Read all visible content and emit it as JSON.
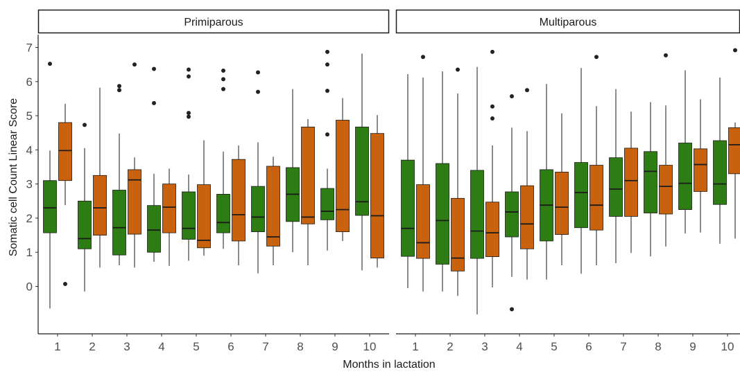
{
  "chart_data": {
    "type": "boxplot",
    "xlabel": "Months in lactation",
    "ylabel": "Somatic cell Count Linear Score",
    "ylim": [
      -1.3,
      7.3
    ],
    "yticks": [
      0,
      1,
      2,
      3,
      4,
      5,
      6,
      7
    ],
    "categories": [
      "1",
      "2",
      "3",
      "4",
      "5",
      "6",
      "7",
      "8",
      "9",
      "10"
    ],
    "colors": {
      "green": "#2e7d14",
      "orange": "#c8620e"
    },
    "grid": false,
    "panels": [
      {
        "name": "Primiparous",
        "series": [
          {
            "color": "#2e7d14",
            "boxes": [
              {
                "x": "1",
                "lower": -0.65,
                "q1": 1.57,
                "median": 2.3,
                "q3": 3.1,
                "upper": 3.98,
                "outliers": [
                  6.52
                ]
              },
              {
                "x": "2",
                "lower": -0.15,
                "q1": 1.1,
                "median": 1.4,
                "q3": 2.5,
                "upper": 4.05,
                "outliers": [
                  4.73
                ]
              },
              {
                "x": "3",
                "lower": 0.62,
                "q1": 0.92,
                "median": 1.72,
                "q3": 2.82,
                "upper": 4.48,
                "outliers": [
                  5.75,
                  5.87
                ]
              },
              {
                "x": "4",
                "lower": 0.72,
                "q1": 1.0,
                "median": 1.65,
                "q3": 2.37,
                "upper": 3.3,
                "outliers": [
                  5.37,
                  6.37
                ]
              },
              {
                "x": "5",
                "lower": 0.75,
                "q1": 1.38,
                "median": 1.7,
                "q3": 2.77,
                "upper": 3.28,
                "outliers": [
                  4.97,
                  5.08,
                  6.15,
                  6.35
                ]
              },
              {
                "x": "6",
                "lower": 1.1,
                "q1": 1.57,
                "median": 1.87,
                "q3": 2.7,
                "upper": 3.95,
                "outliers": [
                  5.78,
                  6.07,
                  6.32
                ]
              },
              {
                "x": "7",
                "lower": 0.38,
                "q1": 1.6,
                "median": 2.03,
                "q3": 2.93,
                "upper": 4.22,
                "outliers": [
                  5.7,
                  6.27
                ]
              },
              {
                "x": "8",
                "lower": 1.0,
                "q1": 1.9,
                "median": 2.7,
                "q3": 3.48,
                "upper": 5.78,
                "outliers": []
              },
              {
                "x": "9",
                "lower": 1.05,
                "q1": 1.95,
                "median": 2.2,
                "q3": 2.87,
                "upper": 3.45,
                "outliers": [
                  4.45,
                  5.73,
                  6.5,
                  6.87
                ]
              },
              {
                "x": "10",
                "lower": 0.47,
                "q1": 2.08,
                "median": 2.48,
                "q3": 4.67,
                "upper": 6.82,
                "outliers": []
              }
            ]
          },
          {
            "color": "#c8620e",
            "boxes": [
              {
                "x": "1",
                "lower": 2.38,
                "q1": 3.1,
                "median": 3.98,
                "q3": 4.8,
                "upper": 5.35,
                "outliers": [
                  0.07
                ]
              },
              {
                "x": "2",
                "lower": 0.55,
                "q1": 1.5,
                "median": 2.3,
                "q3": 3.25,
                "upper": 5.82,
                "outliers": []
              },
              {
                "x": "3",
                "lower": 0.55,
                "q1": 1.53,
                "median": 3.12,
                "q3": 3.42,
                "upper": 3.78,
                "outliers": [
                  6.5
                ]
              },
              {
                "x": "4",
                "lower": 0.6,
                "q1": 1.57,
                "median": 2.32,
                "q3": 3.0,
                "upper": 3.45,
                "outliers": []
              },
              {
                "x": "5",
                "lower": 0.9,
                "q1": 1.13,
                "median": 1.35,
                "q3": 2.98,
                "upper": 4.28,
                "outliers": []
              },
              {
                "x": "6",
                "lower": 0.62,
                "q1": 1.33,
                "median": 2.1,
                "q3": 3.72,
                "upper": 4.13,
                "outliers": []
              },
              {
                "x": "7",
                "lower": 0.62,
                "q1": 1.18,
                "median": 1.45,
                "q3": 3.52,
                "upper": 3.8,
                "outliers": []
              },
              {
                "x": "8",
                "lower": 0.62,
                "q1": 1.83,
                "median": 2.03,
                "q3": 4.67,
                "upper": 4.9,
                "outliers": []
              },
              {
                "x": "9",
                "lower": 1.33,
                "q1": 1.6,
                "median": 2.25,
                "q3": 4.87,
                "upper": 5.52,
                "outliers": []
              },
              {
                "x": "10",
                "lower": 0.55,
                "q1": 0.83,
                "median": 2.07,
                "q3": 4.48,
                "upper": 5.02,
                "outliers": []
              }
            ]
          }
        ]
      },
      {
        "name": "Multiparous",
        "series": [
          {
            "color": "#2e7d14",
            "boxes": [
              {
                "x": "1",
                "lower": -0.05,
                "q1": 0.88,
                "median": 1.7,
                "q3": 3.7,
                "upper": 6.22,
                "outliers": []
              },
              {
                "x": "2",
                "lower": -0.15,
                "q1": 0.65,
                "median": 1.93,
                "q3": 3.6,
                "upper": 6.3,
                "outliers": []
              },
              {
                "x": "3",
                "lower": -0.82,
                "q1": 0.82,
                "median": 1.62,
                "q3": 3.4,
                "upper": 6.43,
                "outliers": []
              },
              {
                "x": "4",
                "lower": 0.28,
                "q1": 1.45,
                "median": 2.18,
                "q3": 2.77,
                "upper": 4.65,
                "outliers": [
                  -0.67,
                  5.57
                ]
              },
              {
                "x": "5",
                "lower": 0.2,
                "q1": 1.33,
                "median": 2.38,
                "q3": 3.42,
                "upper": 5.93,
                "outliers": []
              },
              {
                "x": "6",
                "lower": 0.37,
                "q1": 1.72,
                "median": 2.75,
                "q3": 3.63,
                "upper": 6.4,
                "outliers": []
              },
              {
                "x": "7",
                "lower": 0.68,
                "q1": 2.05,
                "median": 2.85,
                "q3": 3.77,
                "upper": 5.78,
                "outliers": []
              },
              {
                "x": "8",
                "lower": 0.88,
                "q1": 2.15,
                "median": 3.37,
                "q3": 3.95,
                "upper": 5.4,
                "outliers": []
              },
              {
                "x": "9",
                "lower": 1.55,
                "q1": 2.25,
                "median": 3.02,
                "q3": 4.2,
                "upper": 6.33,
                "outliers": []
              },
              {
                "x": "10",
                "lower": 1.25,
                "q1": 2.4,
                "median": 3.0,
                "q3": 4.27,
                "upper": 6.12,
                "outliers": []
              }
            ]
          },
          {
            "color": "#c8620e",
            "boxes": [
              {
                "x": "1",
                "lower": -0.15,
                "q1": 0.82,
                "median": 1.28,
                "q3": 2.98,
                "upper": 6.12,
                "outliers": [
                  6.72
                ]
              },
              {
                "x": "2",
                "lower": -0.28,
                "q1": 0.45,
                "median": 0.83,
                "q3": 2.58,
                "upper": 5.65,
                "outliers": [
                  6.35
                ]
              },
              {
                "x": "3",
                "lower": -0.03,
                "q1": 0.87,
                "median": 1.57,
                "q3": 2.47,
                "upper": 4.13,
                "outliers": [
                  4.92,
                  5.27,
                  6.87
                ]
              },
              {
                "x": "4",
                "lower": 0.2,
                "q1": 1.1,
                "median": 1.83,
                "q3": 2.95,
                "upper": 4.55,
                "outliers": [
                  5.75
                ]
              },
              {
                "x": "5",
                "lower": 0.62,
                "q1": 1.52,
                "median": 2.32,
                "q3": 3.35,
                "upper": 5.07,
                "outliers": []
              },
              {
                "x": "6",
                "lower": 0.62,
                "q1": 1.65,
                "median": 2.38,
                "q3": 3.55,
                "upper": 5.28,
                "outliers": [
                  6.72
                ]
              },
              {
                "x": "7",
                "lower": 0.98,
                "q1": 2.05,
                "median": 3.1,
                "q3": 4.05,
                "upper": 5.12,
                "outliers": []
              },
              {
                "x": "8",
                "lower": 1.17,
                "q1": 2.12,
                "median": 2.93,
                "q3": 3.55,
                "upper": 5.3,
                "outliers": [
                  6.77
                ]
              },
              {
                "x": "9",
                "lower": 1.58,
                "q1": 2.78,
                "median": 3.57,
                "q3": 4.03,
                "upper": 5.48,
                "outliers": []
              },
              {
                "x": "10",
                "lower": 1.4,
                "q1": 3.3,
                "median": 4.15,
                "q3": 4.65,
                "upper": 4.8,
                "outliers": [
                  6.92
                ]
              }
            ]
          }
        ]
      }
    ]
  }
}
